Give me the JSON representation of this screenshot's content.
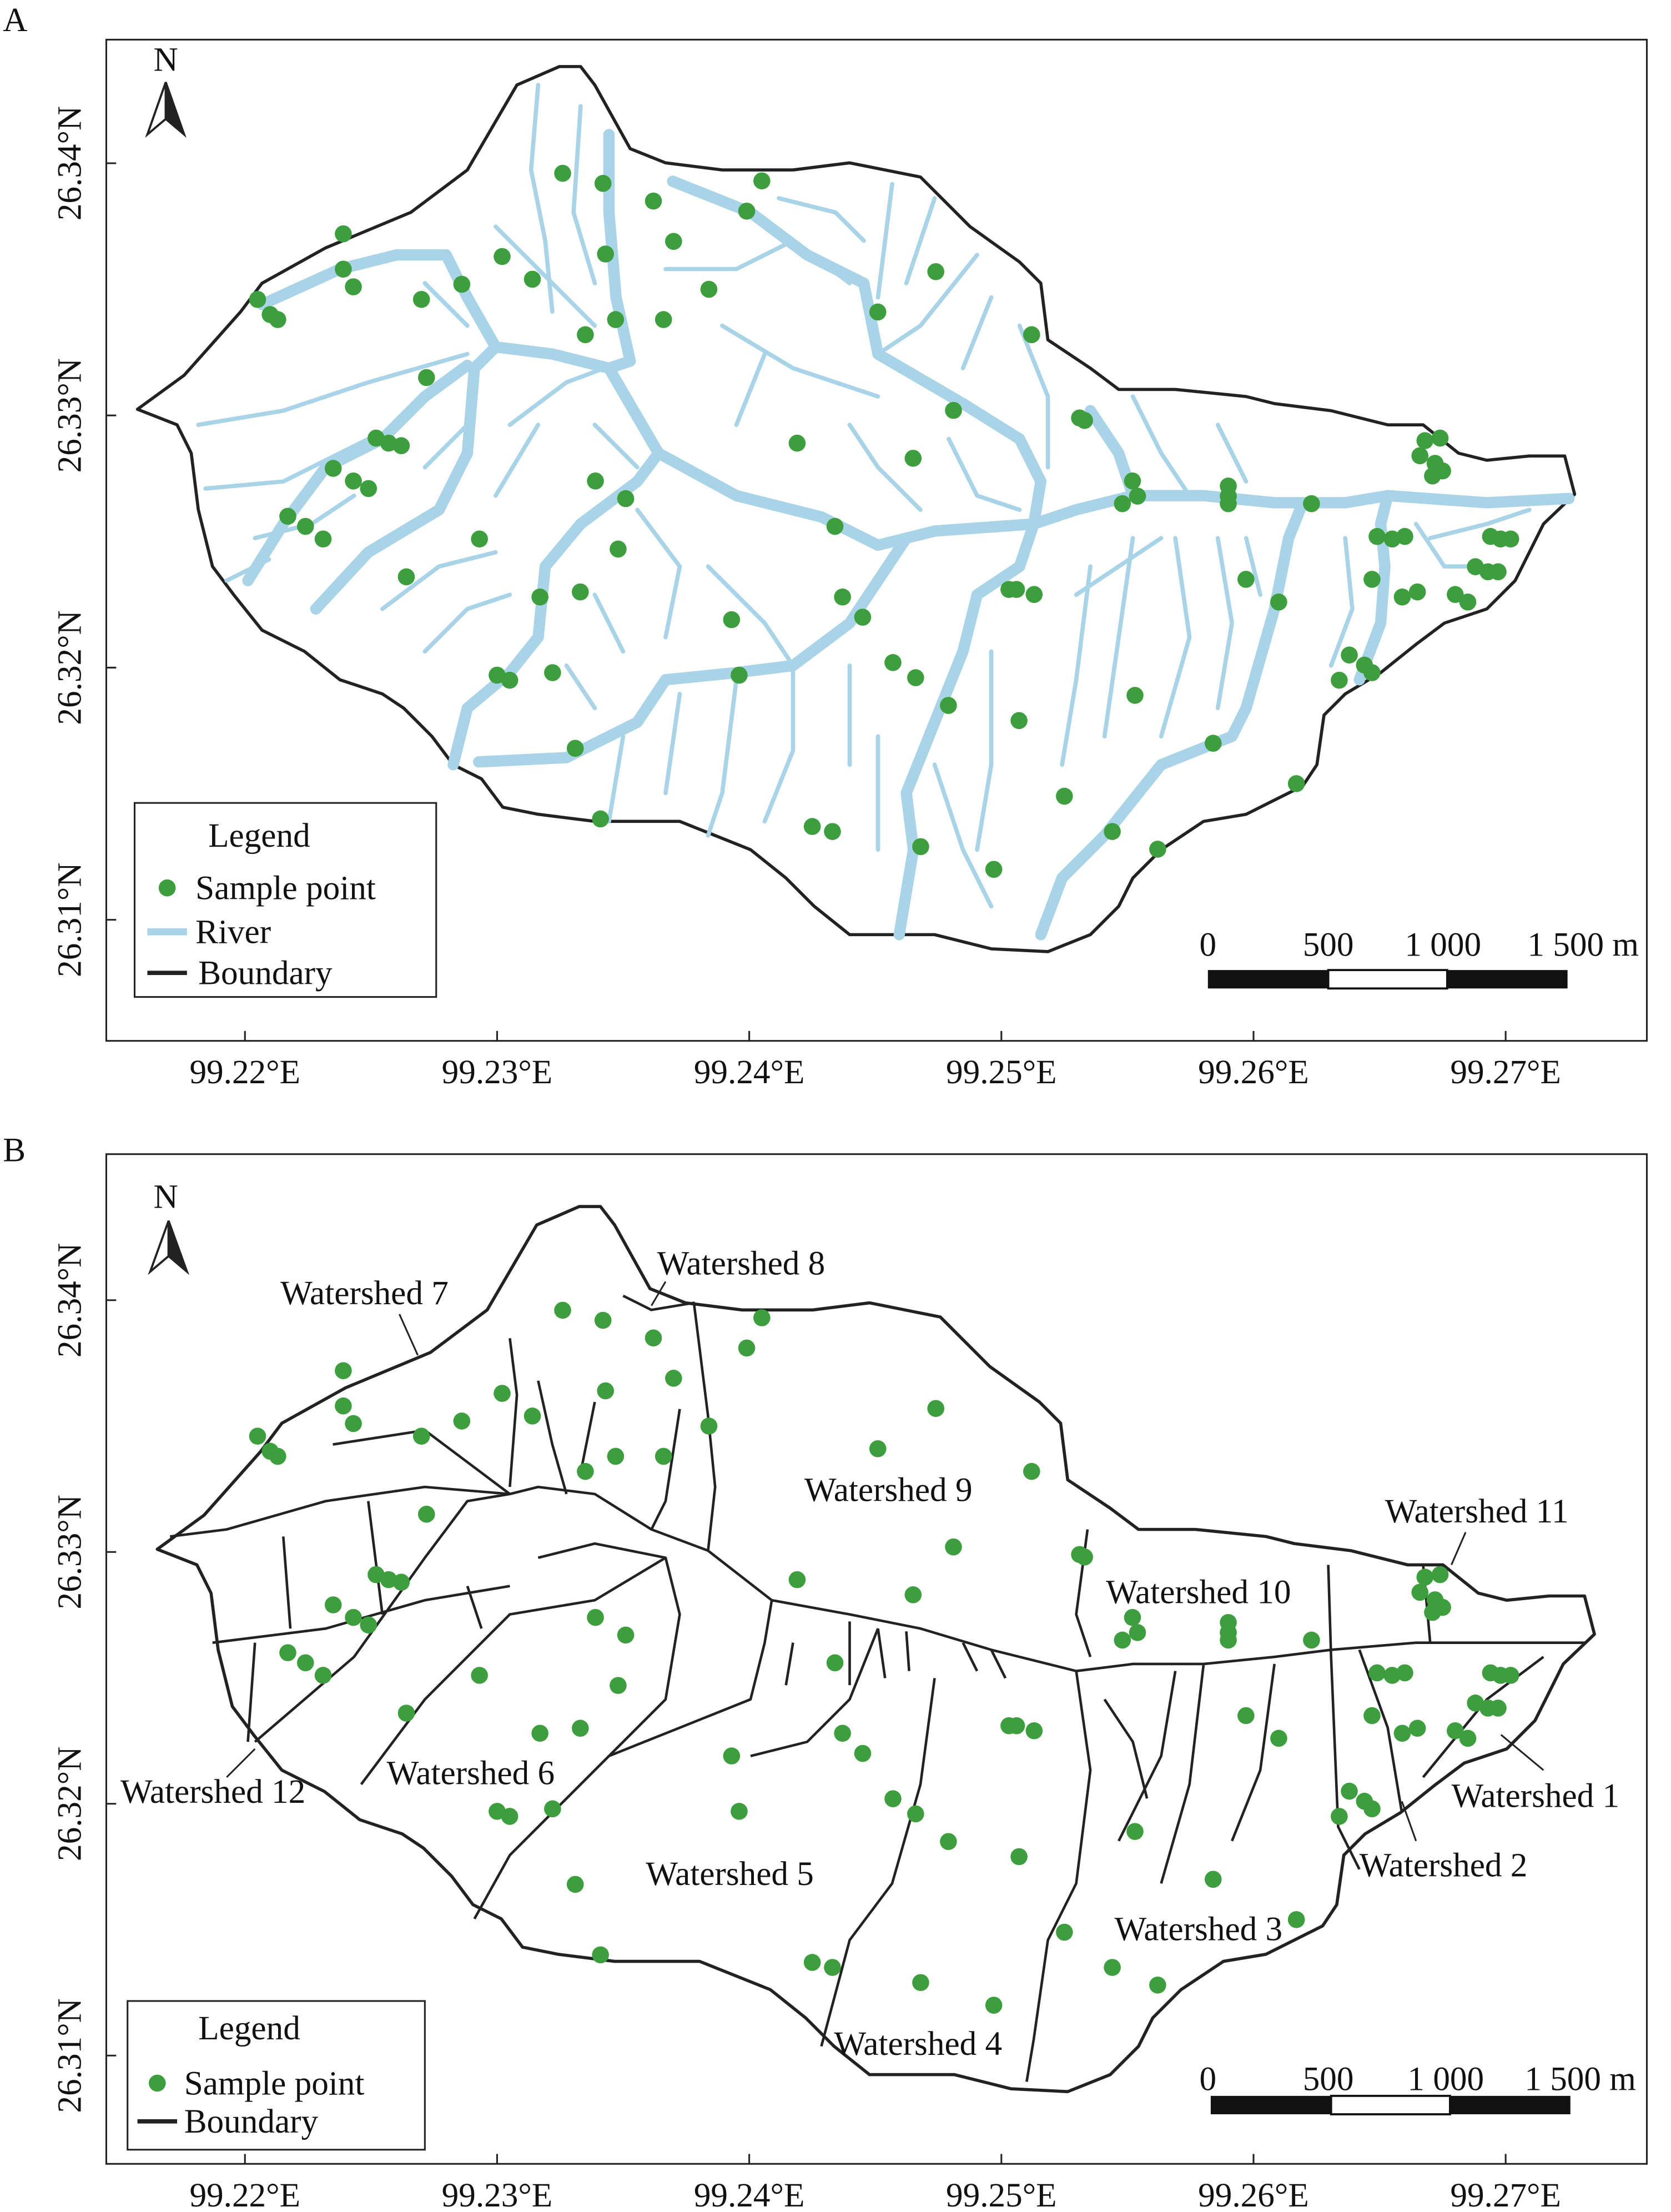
{
  "sample_points": {
    "color": "#3d9e3d",
    "lon": [
      99.2205,
      99.221,
      99.2213,
      99.2239,
      99.2239,
      99.2243,
      99.227,
      99.2286,
      99.2272,
      99.2252,
      99.2257,
      99.2262,
      99.2235,
      99.2243,
      99.2249,
      99.2217,
      99.2224,
      99.2231,
      99.2264,
      99.2293,
      99.2302,
      99.2314,
      99.2326,
      99.2342,
      99.2362,
      99.237,
      99.2343,
      99.2335,
      99.2347,
      99.2366,
      99.2384,
      99.2405,
      99.2399,
      99.2451,
      99.2474,
      99.2512,
      99.2481,
      99.2419,
      99.2465,
      99.2339,
      99.2351,
      99.2348,
      99.2333,
      99.2317,
      99.23,
      99.2305,
      99.2322,
      99.2331,
      99.2341,
      99.2393,
      99.2396,
      99.2434,
      99.2437,
      99.2445,
      99.2457,
      99.2466,
      99.2479,
      99.2507,
      99.2503,
      99.2506,
      99.2513,
      99.2425,
      99.2433,
      99.2468,
      99.2497,
      99.2525,
      99.2544,
      99.2562,
      99.2553,
      99.2584,
      99.2617,
      99.2597,
      99.261,
      99.259,
      99.259,
      99.259,
      99.2623,
      99.2552,
      99.2554,
      99.2548,
      99.2533,
      99.2531,
      99.2668,
      99.2674,
      99.2666,
      99.2672,
      99.2675,
      99.2671,
      99.2649,
      99.2655,
      99.266,
      99.2647,
      99.2659,
      99.2665,
      99.268,
      99.2685,
      99.2694,
      99.2698,
      99.2702,
      99.2688,
      99.2693,
      99.2697,
      99.2638,
      99.2634,
      99.2644,
      99.2647
    ],
    "lat": [
      26.3346,
      26.334,
      26.3338,
      26.3372,
      26.3358,
      26.3351,
      26.3346,
      26.3352,
      26.3315,
      26.3291,
      26.3289,
      26.3288,
      26.3279,
      26.3274,
      26.3271,
      26.326,
      26.3256,
      26.3251,
      26.3236,
      26.3251,
      26.3363,
      26.3354,
      26.3396,
      26.3392,
      26.3385,
      26.3369,
      26.3364,
      26.3332,
      26.3338,
      26.3338,
      26.335,
      26.3393,
      26.3381,
      26.3341,
      26.3357,
      26.3332,
      26.3302,
      26.3289,
      26.3283,
      26.3274,
      26.3267,
      26.3247,
      26.323,
      26.3228,
      26.3197,
      26.3195,
      26.3198,
      26.3168,
      26.314,
      26.3219,
      26.3197,
      26.3256,
      26.3228,
      26.322,
      26.3202,
      26.3196,
      26.3185,
      26.3179,
      26.3231,
      26.3231,
      26.3229,
      26.3137,
      26.3135,
      26.3129,
      26.312,
      26.3149,
      26.3135,
      26.3128,
      26.3189,
      26.317,
      26.3154,
      26.3235,
      26.3226,
      26.3272,
      26.3268,
      26.3265,
      26.3265,
      26.3274,
      26.3268,
      26.3265,
      26.3298,
      26.3299,
      26.329,
      26.3291,
      26.3284,
      26.3281,
      26.3278,
      26.3276,
      26.3252,
      26.3251,
      26.3252,
      26.3235,
      26.3228,
      26.323,
      26.3229,
      26.3226,
      26.3252,
      26.3251,
      26.3251,
      26.324,
      26.3238,
      26.3238,
      26.3205,
      26.3195,
      26.3201,
      26.3198
    ]
  },
  "panels": [
    {
      "label": "A",
      "north": "N",
      "xlim": [
        99.2145,
        99.2756
      ],
      "ylim": [
        26.3052,
        26.3449
      ],
      "xticks": [
        {
          "value": 99.22,
          "label": "99.22°E"
        },
        {
          "value": 99.23,
          "label": "99.23°E"
        },
        {
          "value": 99.24,
          "label": "99.24°E"
        },
        {
          "value": 99.25,
          "label": "99.25°E"
        },
        {
          "value": 99.26,
          "label": "99.26°E"
        },
        {
          "value": 99.27,
          "label": "99.27°E"
        }
      ],
      "yticks": [
        {
          "value": 26.31,
          "label": "26.31°N"
        },
        {
          "value": 26.32,
          "label": "26.32°N"
        },
        {
          "value": 26.33,
          "label": "26.33°N"
        },
        {
          "value": 26.34,
          "label": "26.34°N"
        }
      ],
      "legend": {
        "title": "Legend",
        "items": [
          "Sample point",
          "River",
          "Boundary"
        ]
      },
      "scale_bar": [
        "0",
        "500",
        "1 000",
        "1 500 m"
      ]
    },
    {
      "label": "B",
      "north": "N",
      "xlim": [
        99.2145,
        99.2756
      ],
      "ylim": [
        26.3057,
        26.3458
      ],
      "xticks": [
        {
          "value": 99.22,
          "label": "99.22°E"
        },
        {
          "value": 99.23,
          "label": "99.23°E"
        },
        {
          "value": 99.24,
          "label": "99.24°E"
        },
        {
          "value": 99.25,
          "label": "99.25°E"
        },
        {
          "value": 99.26,
          "label": "99.26°E"
        },
        {
          "value": 99.27,
          "label": "99.27°E"
        }
      ],
      "yticks": [
        {
          "value": 26.31,
          "label": "26.31°N"
        },
        {
          "value": 26.32,
          "label": "26.32°N"
        },
        {
          "value": 26.33,
          "label": "26.33°N"
        },
        {
          "value": 26.34,
          "label": "26.34°N"
        }
      ],
      "legend": {
        "title": "Legend",
        "items": [
          "Sample point",
          "Boundary"
        ]
      },
      "scale_bar": [
        "0",
        "500",
        "1 000",
        "1 500 m"
      ],
      "watersheds": [
        "Watershed 1",
        "Watershed 2",
        "Watershed 3",
        "Watershed 4",
        "Watershed 5",
        "Watershed 6",
        "Watershed 7",
        "Watershed 8",
        "Watershed 9",
        "Watershed 10",
        "Watershed 11",
        "Watershed 12"
      ]
    }
  ]
}
